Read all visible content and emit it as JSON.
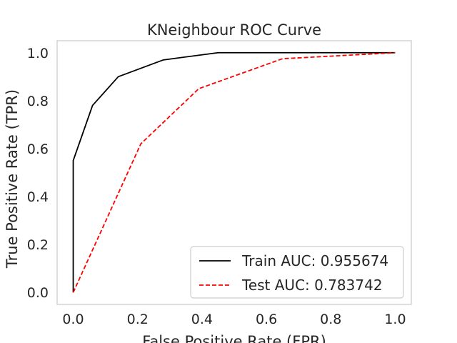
{
  "chart_data": {
    "type": "line",
    "title": "KNeighbour ROC Curve",
    "xlabel": "False Positive Rate (FPR)",
    "ylabel": "True Positive Rate (TPR)",
    "xlim": [
      -0.05,
      1.05
    ],
    "ylim": [
      -0.05,
      1.05
    ],
    "xticks": [
      0.0,
      0.2,
      0.4,
      0.6,
      0.8,
      1.0
    ],
    "yticks": [
      0.0,
      0.2,
      0.4,
      0.6,
      0.8,
      1.0
    ],
    "tick_labels": [
      "0.0",
      "0.2",
      "0.4",
      "0.6",
      "0.8",
      "1.0"
    ],
    "grid": false,
    "legend_position": "lower-right",
    "series": [
      {
        "name": "Train AUC: 0.955674",
        "color": "#000000",
        "style": "solid",
        "x": [
          0.0,
          0.0,
          0.06,
          0.14,
          0.28,
          0.45,
          1.0
        ],
        "y": [
          0.0,
          0.55,
          0.78,
          0.9,
          0.97,
          1.0,
          1.0
        ]
      },
      {
        "name": "Test AUC: 0.783742",
        "color": "#ff0000",
        "style": "dashed",
        "x": [
          0.0,
          0.21,
          0.39,
          0.65,
          1.0
        ],
        "y": [
          0.0,
          0.62,
          0.85,
          0.975,
          1.0
        ]
      }
    ]
  }
}
